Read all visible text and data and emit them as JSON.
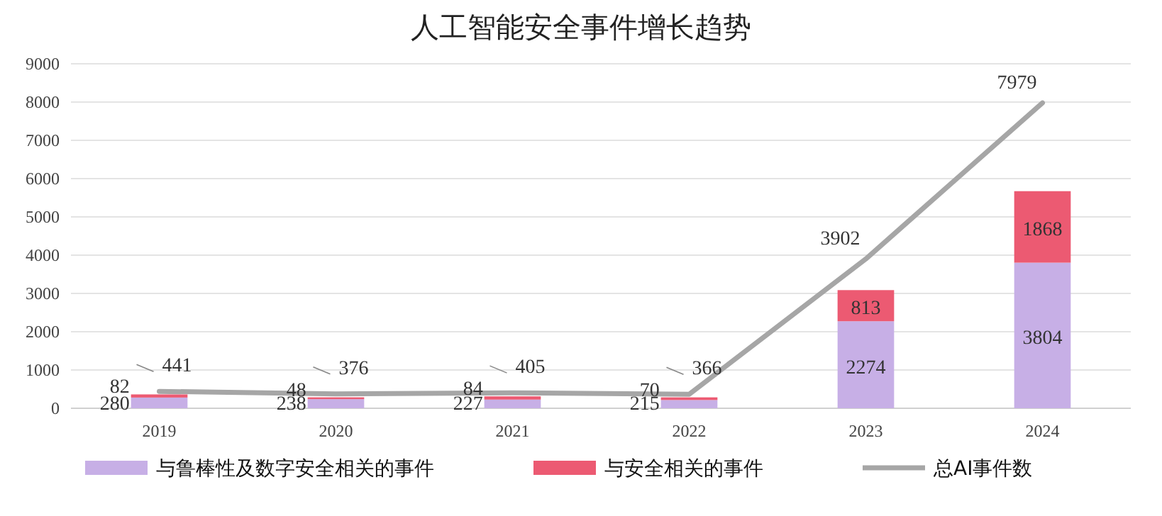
{
  "chart_data": {
    "type": "bar",
    "title": "人工智能安全事件增长趋势",
    "categories": [
      "2019",
      "2020",
      "2021",
      "2022",
      "2023",
      "2024"
    ],
    "stacked": true,
    "series": [
      {
        "name": "与鲁棒性及数字安全相关的事件",
        "color": "#c7afe6",
        "values": [
          280,
          238,
          227,
          215,
          2274,
          3804
        ]
      },
      {
        "name": "与安全相关的事件",
        "color": "#ec5a72",
        "values": [
          82,
          48,
          84,
          70,
          813,
          1868
        ]
      },
      {
        "name": "总AI事件数",
        "type": "line",
        "color": "#a6a6a6",
        "values": [
          441,
          376,
          405,
          366,
          3902,
          7979
        ]
      }
    ],
    "ylim": [
      0,
      9000
    ],
    "yticks": [
      0,
      1000,
      2000,
      3000,
      4000,
      5000,
      6000,
      7000,
      8000,
      9000
    ],
    "grid": "y",
    "legend": "bottom",
    "data_labels": true
  }
}
